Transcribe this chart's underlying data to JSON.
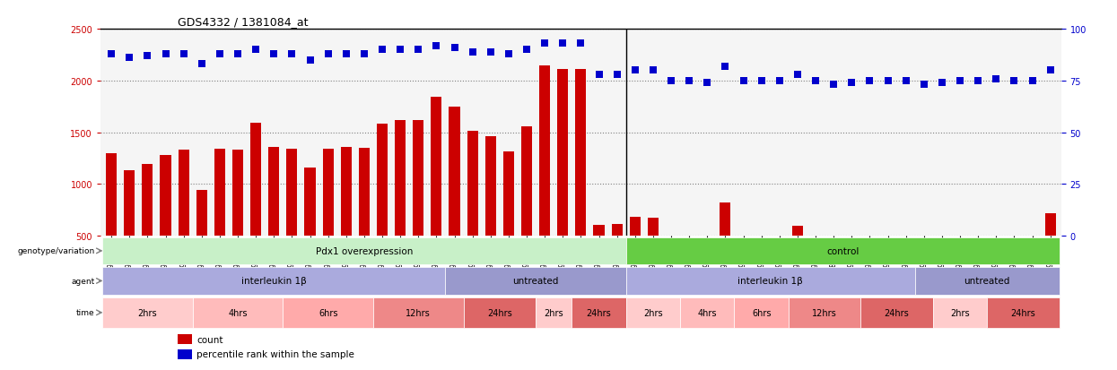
{
  "title": "GDS4332 / 1381084_at",
  "sample_ids": [
    "GSM998740",
    "GSM998753",
    "GSM998766",
    "GSM998774",
    "GSM998729",
    "GSM998754",
    "GSM998767",
    "GSM998775",
    "GSM998741",
    "GSM998755",
    "GSM998768",
    "GSM998776",
    "GSM998730",
    "GSM998742",
    "GSM998747",
    "GSM998777",
    "GSM998731",
    "GSM998748",
    "GSM998756",
    "GSM998769",
    "GSM998732",
    "GSM998749",
    "GSM998757",
    "GSM998778",
    "GSM998733",
    "GSM998758",
    "GSM998770",
    "GSM998779",
    "GSM998734",
    "GSM998743",
    "GSM998750",
    "GSM998735",
    "GSM998760",
    "GSM998762",
    "GSM998744",
    "GSM998751",
    "GSM998761",
    "GSM998771",
    "GSM998736",
    "GSM998745",
    "GSM998762b",
    "GSM998781",
    "GSM998737",
    "GSM998752",
    "GSM998763",
    "GSM998772",
    "GSM998738",
    "GSM998764",
    "GSM998773",
    "GSM998783",
    "GSM998739",
    "GSM998765",
    "GSM998784"
  ],
  "bar_values": [
    1295,
    1135,
    1195,
    1280,
    1335,
    940,
    1340,
    1330,
    1595,
    1355,
    1345,
    1160,
    1345,
    1360,
    1350,
    1580,
    1620,
    1620,
    1840,
    1745,
    1510,
    1465,
    1315,
    1555,
    2145,
    2110,
    2110,
    605,
    610,
    680,
    670,
    490,
    490,
    465,
    820,
    470,
    480,
    490,
    600,
    480,
    430,
    465,
    480,
    475,
    480,
    430,
    460,
    490,
    480,
    500,
    490,
    490,
    720
  ],
  "percentile_values": [
    88,
    86,
    87,
    88,
    88,
    83,
    88,
    88,
    90,
    88,
    88,
    85,
    88,
    88,
    88,
    90,
    90,
    90,
    92,
    91,
    89,
    89,
    88,
    90,
    93,
    93,
    93,
    78,
    78,
    80,
    80,
    75,
    75,
    74,
    82,
    75,
    75,
    75,
    78,
    75,
    73,
    74,
    75,
    75,
    75,
    73,
    74,
    75,
    75,
    76,
    75,
    75,
    80
  ],
  "ylim_left": [
    500,
    2500
  ],
  "ylim_right": [
    0,
    100
  ],
  "yticks_left": [
    500,
    1000,
    1500,
    2000,
    2500
  ],
  "yticks_right": [
    0,
    25,
    50,
    75,
    100
  ],
  "bar_color": "#cc0000",
  "dot_color": "#0000cc",
  "genotype_row": {
    "label": "genotype/variation",
    "groups": [
      {
        "text": "Pdx1 overexpression",
        "start": 0,
        "end": 29,
        "color": "#c8f0c8"
      },
      {
        "text": "control",
        "start": 29,
        "end": 53,
        "color": "#66cc44"
      }
    ]
  },
  "agent_row": {
    "label": "agent",
    "groups": [
      {
        "text": "interleukin 1β",
        "start": 0,
        "end": 19,
        "color": "#aaaadd"
      },
      {
        "text": "untreated",
        "start": 19,
        "end": 29,
        "color": "#9999cc"
      },
      {
        "text": "interleukin 1β",
        "start": 29,
        "end": 45,
        "color": "#aaaadd"
      },
      {
        "text": "untreated",
        "start": 45,
        "end": 53,
        "color": "#9999cc"
      }
    ]
  },
  "time_row": {
    "label": "time",
    "groups": [
      {
        "text": "2hrs",
        "start": 0,
        "end": 5,
        "color": "#ffcccc"
      },
      {
        "text": "4hrs",
        "start": 5,
        "end": 10,
        "color": "#ffbbbb"
      },
      {
        "text": "6hrs",
        "start": 10,
        "end": 15,
        "color": "#ffaaaa"
      },
      {
        "text": "12hrs",
        "start": 15,
        "end": 20,
        "color": "#ee8888"
      },
      {
        "text": "24hrs",
        "start": 20,
        "end": 24,
        "color": "#dd6666"
      },
      {
        "text": "2hrs",
        "start": 24,
        "end": 26,
        "color": "#ffcccc"
      },
      {
        "text": "24hrs",
        "start": 26,
        "end": 29,
        "color": "#dd6666"
      },
      {
        "text": "2hrs",
        "start": 29,
        "end": 32,
        "color": "#ffcccc"
      },
      {
        "text": "4hrs",
        "start": 32,
        "end": 35,
        "color": "#ffbbbb"
      },
      {
        "text": "6hrs",
        "start": 35,
        "end": 38,
        "color": "#ffaaaa"
      },
      {
        "text": "12hrs",
        "start": 38,
        "end": 42,
        "color": "#ee8888"
      },
      {
        "text": "24hrs",
        "start": 42,
        "end": 46,
        "color": "#dd6666"
      },
      {
        "text": "2hrs",
        "start": 46,
        "end": 49,
        "color": "#ffcccc"
      },
      {
        "text": "24hrs",
        "start": 49,
        "end": 53,
        "color": "#dd6666"
      }
    ]
  },
  "legend_count_color": "#cc0000",
  "legend_percentile_color": "#0000cc",
  "bg_color": "#ffffff",
  "plot_bg_color": "#f5f5f5"
}
